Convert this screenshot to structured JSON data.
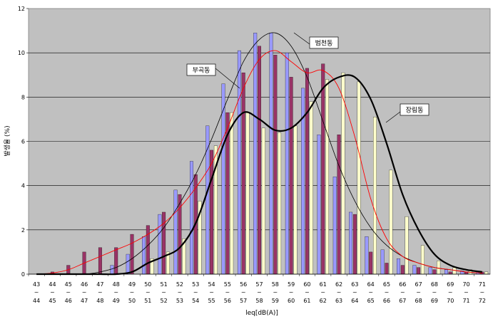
{
  "chart_data": {
    "type": "bar",
    "title": "",
    "xlabel": "leq[dB(A)]",
    "ylabel": "발생율 (%)",
    "ylim": [
      0,
      12
    ],
    "yticks": [
      0,
      2,
      4,
      6,
      8,
      10,
      12
    ],
    "grid": true,
    "categories_top": [
      "43",
      "44",
      "45",
      "46",
      "47",
      "48",
      "49",
      "50",
      "51",
      "52",
      "53",
      "54",
      "55",
      "56",
      "57",
      "58",
      "59",
      "60",
      "61",
      "62",
      "63",
      "64",
      "65",
      "66",
      "67",
      "68",
      "69",
      "70",
      "71"
    ],
    "categories_bottom": [
      "44",
      "45",
      "46",
      "47",
      "48",
      "49",
      "50",
      "51",
      "52",
      "53",
      "54",
      "55",
      "56",
      "57",
      "58",
      "59",
      "60",
      "61",
      "62",
      "63",
      "64",
      "65",
      "66",
      "67",
      "68",
      "69",
      "70",
      "71",
      "72"
    ],
    "range_separator": "~",
    "series": [
      {
        "color": "#9999ff",
        "values": [
          0,
          0,
          0,
          0,
          0,
          0.4,
          0.9,
          1.7,
          2.7,
          3.8,
          5.1,
          6.7,
          8.6,
          10.1,
          10.9,
          10.9,
          10.0,
          8.4,
          6.3,
          4.4,
          2.8,
          1.7,
          1.1,
          0.7,
          0.4,
          0.3,
          0.2,
          0.15,
          0.1
        ]
      },
      {
        "color": "#993366",
        "values": [
          0,
          0.1,
          0.4,
          1.0,
          1.2,
          1.2,
          1.8,
          2.2,
          2.8,
          3.6,
          4.5,
          5.6,
          7.3,
          9.1,
          10.3,
          9.9,
          8.9,
          9.3,
          9.5,
          6.3,
          2.7,
          1.0,
          0.5,
          0.4,
          0.3,
          0.2,
          0.1,
          0.1,
          0.1
        ]
      },
      {
        "color": "#ffffcc",
        "values": [
          0,
          0,
          0,
          0,
          0,
          0,
          0,
          0.7,
          1.0,
          1.6,
          3.3,
          5.8,
          7.3,
          7.3,
          6.6,
          6.4,
          6.7,
          7.8,
          8.8,
          9.1,
          8.7,
          7.1,
          4.7,
          2.6,
          1.3,
          0.6,
          0.3,
          0.2,
          0.1
        ]
      }
    ],
    "lines": [
      {
        "name": "부곡동",
        "color": "#000000",
        "width": 0.8,
        "values": [
          0,
          0,
          0,
          0,
          0.1,
          0.3,
          0.7,
          1.3,
          2.1,
          3.2,
          4.5,
          6.1,
          7.9,
          9.6,
          10.6,
          10.9,
          10.3,
          8.9,
          6.9,
          4.9,
          3.3,
          2.1,
          1.3,
          0.8,
          0.5,
          0.3,
          0.2,
          0.1,
          0.05
        ]
      },
      {
        "name": "범천동",
        "color": "#ff0000",
        "width": 0.9,
        "values": [
          0,
          0.05,
          0.2,
          0.5,
          0.8,
          1.1,
          1.4,
          1.8,
          2.3,
          3.0,
          3.9,
          5.0,
          6.6,
          8.4,
          9.7,
          10.1,
          9.6,
          9.1,
          9.2,
          8.4,
          6.2,
          3.4,
          1.6,
          0.8,
          0.5,
          0.3,
          0.2,
          0.1,
          0.05
        ]
      },
      {
        "name": "장림동",
        "color": "#000000",
        "width": 2.2,
        "values": [
          0,
          0,
          0,
          0,
          0,
          0,
          0.1,
          0.5,
          0.8,
          1.2,
          2.3,
          4.3,
          6.3,
          7.3,
          7.0,
          6.5,
          6.6,
          7.3,
          8.4,
          8.9,
          8.9,
          7.9,
          5.9,
          3.6,
          2.0,
          0.9,
          0.4,
          0.2,
          0.1
        ]
      }
    ],
    "annotations": [
      {
        "text": "범천동",
        "target_series": "범천동"
      },
      {
        "text": "부곡동",
        "target_series": "부곡동"
      },
      {
        "text": "장림동",
        "target_series": "장림동"
      }
    ]
  }
}
